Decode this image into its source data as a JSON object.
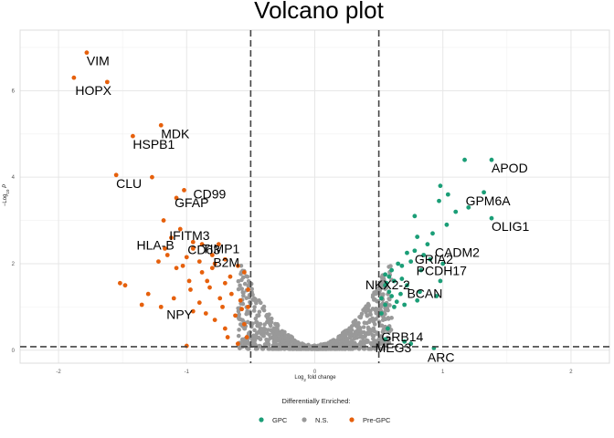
{
  "chart_data": {
    "type": "scatter",
    "title": "Volcano plot",
    "xlabel": "Log2 fold change",
    "ylabel": "-Log10 P",
    "xlim": [
      -2.3,
      2.3
    ],
    "ylim": [
      -0.3,
      7.4
    ],
    "x_ticks": [
      -2,
      -1,
      0,
      1,
      2
    ],
    "y_ticks": [
      0,
      2,
      4,
      6
    ],
    "grid": true,
    "fc_cutoff": 0.5,
    "p_cutoff": 0.08,
    "legend": {
      "title": "Differentially Enriched:",
      "position": "bottom",
      "entries": [
        "GPC",
        "N.S.",
        "Pre-GPC"
      ]
    },
    "colors": {
      "GPC": "#1b9e77",
      "N.S.": "#999999",
      "Pre-GPC": "#e6600c"
    },
    "series": [
      {
        "name": "Pre-GPC",
        "points": [
          [
            -1.78,
            6.88
          ],
          [
            -1.88,
            6.3
          ],
          [
            -1.62,
            6.2
          ],
          [
            -1.2,
            5.2
          ],
          [
            -1.42,
            4.95
          ],
          [
            -1.55,
            4.05
          ],
          [
            -1.27,
            4.0
          ],
          [
            -1.02,
            3.7
          ],
          [
            -1.08,
            3.52
          ],
          [
            -1.18,
            3.0
          ],
          [
            -1.05,
            2.8
          ],
          [
            -0.95,
            2.5
          ],
          [
            -1.12,
            2.6
          ],
          [
            -0.88,
            2.45
          ],
          [
            -1.15,
            2.2
          ],
          [
            -1.0,
            2.15
          ],
          [
            -0.9,
            2.05
          ],
          [
            -0.8,
            2.2
          ],
          [
            -0.75,
            2.45
          ],
          [
            -1.22,
            2.05
          ],
          [
            -1.17,
            2.35
          ],
          [
            -1.03,
            1.95
          ],
          [
            -0.95,
            2.35
          ],
          [
            -0.84,
            1.6
          ],
          [
            -0.7,
            1.55
          ],
          [
            -1.2,
            1.0
          ],
          [
            -1.35,
            1.05
          ],
          [
            -1.08,
            1.9
          ],
          [
            -0.97,
            1.4
          ],
          [
            -0.9,
            1.1
          ],
          [
            -1.1,
            1.2
          ],
          [
            -0.8,
            1.9
          ],
          [
            -0.72,
            1.0
          ],
          [
            -0.6,
            1.95
          ],
          [
            -0.55,
            1.8
          ],
          [
            -0.65,
            1.3
          ],
          [
            -0.58,
            1.15
          ],
          [
            -0.52,
            1.4
          ],
          [
            -0.85,
            0.85
          ],
          [
            -0.78,
            0.7
          ],
          [
            -0.95,
            0.9
          ],
          [
            -0.7,
            0.5
          ],
          [
            -0.62,
            0.8
          ],
          [
            -0.55,
            0.6
          ],
          [
            -0.53,
            0.3
          ],
          [
            -0.68,
            0.3
          ],
          [
            -0.6,
            0.15
          ],
          [
            -1.52,
            1.55
          ],
          [
            -1.48,
            1.5
          ],
          [
            -1.3,
            1.3
          ],
          [
            -0.98,
            1.6
          ],
          [
            -0.88,
            1.8
          ],
          [
            -0.66,
            1.7
          ],
          [
            -0.74,
            1.2
          ],
          [
            -0.52,
            1.0
          ],
          [
            -0.57,
            0.95
          ],
          [
            -0.82,
            1.45
          ],
          [
            -1.0,
            0.1
          ],
          [
            -0.78,
            2.0
          ],
          [
            -0.7,
            2.1
          ]
        ]
      },
      {
        "name": "GPC",
        "points": [
          [
            1.38,
            4.4
          ],
          [
            1.17,
            4.4
          ],
          [
            1.32,
            3.65
          ],
          [
            0.98,
            3.8
          ],
          [
            1.04,
            3.6
          ],
          [
            0.97,
            3.45
          ],
          [
            1.38,
            3.05
          ],
          [
            1.1,
            3.2
          ],
          [
            0.78,
            3.1
          ],
          [
            1.2,
            3.3
          ],
          [
            1.03,
            2.9
          ],
          [
            0.92,
            2.7
          ],
          [
            0.8,
            2.62
          ],
          [
            0.88,
            2.45
          ],
          [
            0.78,
            2.3
          ],
          [
            0.72,
            2.25
          ],
          [
            0.85,
            2.2
          ],
          [
            0.9,
            2.1
          ],
          [
            0.75,
            2.05
          ],
          [
            0.65,
            2.0
          ],
          [
            0.68,
            1.95
          ],
          [
            0.6,
            1.85
          ],
          [
            0.58,
            1.7
          ],
          [
            0.62,
            1.6
          ],
          [
            0.72,
            1.5
          ],
          [
            0.55,
            1.5
          ],
          [
            0.58,
            1.35
          ],
          [
            0.52,
            1.2
          ],
          [
            0.55,
            1.05
          ],
          [
            0.62,
            1.0
          ],
          [
            0.67,
            1.3
          ],
          [
            0.52,
            0.85
          ],
          [
            0.8,
            1.15
          ],
          [
            0.95,
            1.25
          ],
          [
            0.57,
            0.5
          ],
          [
            0.55,
            0.25
          ],
          [
            0.7,
            0.2
          ],
          [
            0.93,
            0.05
          ],
          [
            0.75,
            0.15
          ],
          [
            0.55,
            1.75
          ],
          [
            0.6,
            1.25
          ],
          [
            0.64,
            1.12
          ],
          [
            0.7,
            1.05
          ],
          [
            0.82,
            1.35
          ],
          [
            0.98,
            1.6
          ],
          [
            1.0,
            2.0
          ],
          [
            0.83,
            1.85
          ],
          [
            0.68,
            1.65
          ],
          [
            0.56,
            1.55
          ]
        ]
      }
    ],
    "labels": [
      {
        "text": "VIM",
        "at": [
          -1.78,
          6.88
        ]
      },
      {
        "text": "HOPX",
        "at": [
          -1.62,
          6.2
        ]
      },
      {
        "text": "MDK",
        "at": [
          -1.2,
          5.2
        ]
      },
      {
        "text": "HSPB1",
        "at": [
          -1.42,
          4.95
        ]
      },
      {
        "text": "CLU",
        "at": [
          -1.55,
          4.05
        ]
      },
      {
        "text": "CD99",
        "at": [
          -1.02,
          3.7
        ]
      },
      {
        "text": "GFAP",
        "at": [
          -1.08,
          3.52
        ]
      },
      {
        "text": "IFITM3",
        "at": [
          -1.05,
          2.8
        ]
      },
      {
        "text": "CD63",
        "at": [
          -0.95,
          2.5
        ]
      },
      {
        "text": "HLA-B",
        "at": [
          -1.12,
          2.6
        ]
      },
      {
        "text": "TIMP1",
        "at": [
          -0.88,
          2.45
        ]
      },
      {
        "text": "B2M",
        "at": [
          -0.8,
          2.2
        ]
      },
      {
        "text": "NPY",
        "at": [
          -1.2,
          1.0
        ]
      },
      {
        "text": "APOD",
        "at": [
          1.38,
          4.4
        ]
      },
      {
        "text": "GPM6A",
        "at": [
          1.32,
          3.65
        ]
      },
      {
        "text": "OLIG1",
        "at": [
          1.38,
          3.05
        ]
      },
      {
        "text": "CADM2",
        "at": [
          0.88,
          2.45
        ]
      },
      {
        "text": "GRIA2",
        "at": [
          0.78,
          2.3
        ]
      },
      {
        "text": "PCDH17",
        "at": [
          0.75,
          2.05
        ]
      },
      {
        "text": "NKX2-2",
        "at": [
          0.58,
          1.7
        ]
      },
      {
        "text": "BCAN",
        "at": [
          0.72,
          1.5
        ]
      },
      {
        "text": "GRB14",
        "at": [
          0.57,
          0.5
        ]
      },
      {
        "text": "MEG3",
        "at": [
          0.55,
          0.25
        ]
      },
      {
        "text": "ARC",
        "at": [
          0.93,
          0.05
        ]
      }
    ]
  }
}
